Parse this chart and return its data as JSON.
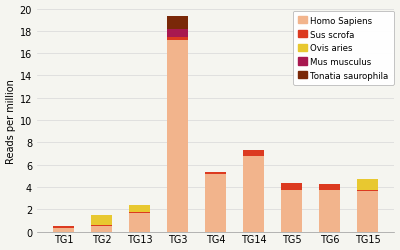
{
  "categories": [
    "TG1",
    "TG2",
    "TG13",
    "TG3",
    "TG4",
    "TG14",
    "TG5",
    "TG6",
    "TG15"
  ],
  "series": {
    "Homo Sapiens": [
      0.35,
      0.55,
      1.65,
      17.2,
      5.15,
      6.8,
      3.75,
      3.7,
      3.65
    ],
    "Sus scrofa": [
      0.12,
      0.05,
      0.08,
      0.22,
      0.2,
      0.48,
      0.6,
      0.55,
      0.05
    ],
    "Ovis aries": [
      0.08,
      0.9,
      0.7,
      0.0,
      0.0,
      0.0,
      0.0,
      0.0,
      1.05
    ],
    "Mus musculus": [
      0.0,
      0.0,
      0.0,
      0.75,
      0.0,
      0.0,
      0.0,
      0.0,
      0.0
    ],
    "Tonatia saurophila": [
      0.0,
      0.0,
      0.0,
      1.15,
      0.0,
      0.0,
      0.0,
      0.0,
      0.0
    ]
  },
  "colors": {
    "Homo Sapiens": "#f2b48c",
    "Sus scrofa": "#dc3a20",
    "Ovis aries": "#e8c830",
    "Mus musculus": "#a81850",
    "Tonatia saurophila": "#7a2808"
  },
  "ylabel": "Reads per million",
  "ylim": [
    0,
    20
  ],
  "yticks": [
    0,
    2,
    4,
    6,
    8,
    10,
    12,
    14,
    16,
    18,
    20
  ],
  "bar_width": 0.55,
  "legend_labels": [
    "Homo Sapiens",
    "Sus scrofa",
    "Ovis aries",
    "Mus musculus",
    "Tonatia saurophila"
  ],
  "bg_color": "#f5f5f0",
  "grid_color": "#d8d8d8",
  "figsize": [
    4.0,
    2.51
  ],
  "dpi": 100
}
